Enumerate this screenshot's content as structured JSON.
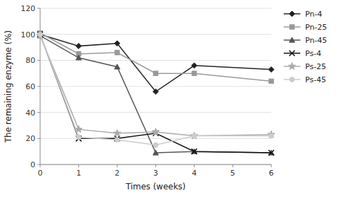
{
  "chart_data": {
    "type": "line",
    "xlabel": "Times (weeks)",
    "ylabel": "The remaining enzyme (%)",
    "x": [
      0,
      1,
      2,
      3,
      4,
      6
    ],
    "xlim": [
      0,
      6
    ],
    "ylim": [
      0,
      120
    ],
    "xticks": [
      0,
      1,
      2,
      3,
      4,
      5,
      6
    ],
    "yticks": [
      0,
      20,
      40,
      60,
      80,
      100,
      120
    ],
    "grid": true,
    "legend": "right",
    "series": [
      {
        "name": "Pn-4",
        "color": "#222222",
        "marker": "diamond",
        "line_style": "solid",
        "values": [
          100,
          91,
          93,
          56,
          76,
          73
        ]
      },
      {
        "name": "Pn-25",
        "color": "#999999",
        "marker": "square",
        "line_style": "solid",
        "values": [
          101,
          85,
          86,
          70,
          70,
          64
        ]
      },
      {
        "name": "Pn-45",
        "color": "#555555",
        "marker": "triangle",
        "line_style": "solid",
        "values": [
          99,
          82,
          75,
          9,
          10,
          9
        ]
      },
      {
        "name": "Ps-4",
        "color": "#111111",
        "marker": "x",
        "line_style": "solid",
        "values": [
          100,
          20,
          20,
          24,
          10,
          9
        ]
      },
      {
        "name": "Ps-25",
        "color": "#aaaaaa",
        "marker": "star",
        "line_style": "solid",
        "values": [
          99,
          27,
          24,
          25,
          22,
          23
        ]
      },
      {
        "name": "Ps-45",
        "color": "#cccccc",
        "marker": "circle",
        "line_style": "solid",
        "values": [
          100,
          21,
          19,
          15,
          22,
          22
        ]
      }
    ]
  }
}
